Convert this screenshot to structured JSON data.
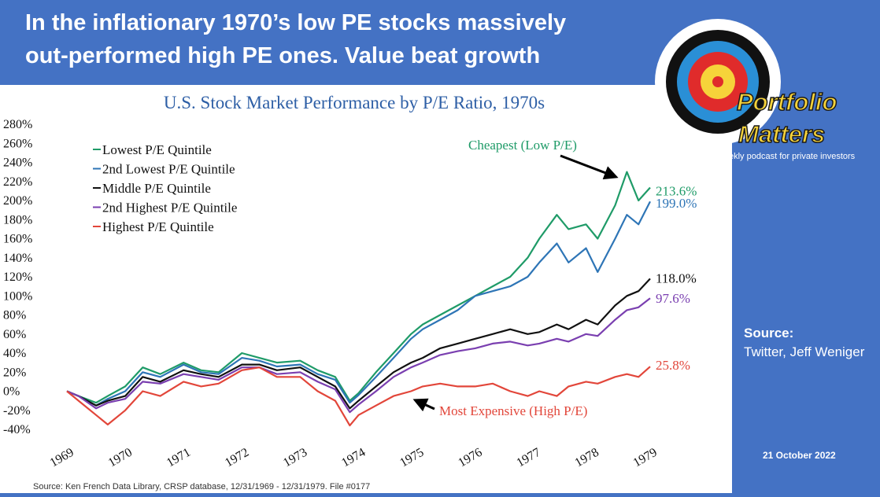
{
  "header": {
    "line1": "In the inflationary 1970’s low PE stocks massively",
    "line2": "out-performed high PE ones. Value beat growth"
  },
  "logo": {
    "name_line1": "Portfolio",
    "name_line2": "Matters",
    "tagline": "ekly podcast for private investors"
  },
  "side": {
    "source_heading": "Source:",
    "source_text": "Twitter, Jeff Weniger",
    "date": "21 October 2022"
  },
  "colors": {
    "banner": "#4472c4",
    "lowest": "#1f9b68",
    "second_lowest": "#2e75b6",
    "middle": "#111111",
    "second_highest": "#7a3fb0",
    "highest": "#e2463a",
    "title": "#2e5fa6"
  },
  "chart_data": {
    "type": "line",
    "title": "U.S. Stock Market Performance by P/E Ratio, 1970s",
    "source": "Source: Ken French Data Library, CRSP database, 12/31/1969 - 12/31/1979. File #0177",
    "ylim": [
      -40,
      280
    ],
    "xlim": [
      1969,
      1979
    ],
    "yticks": [
      "-40%",
      "-20%",
      "0%",
      "20%",
      "40%",
      "60%",
      "80%",
      "100%",
      "120%",
      "140%",
      "160%",
      "180%",
      "200%",
      "220%",
      "240%",
      "260%",
      "280%"
    ],
    "ytick_values": [
      -40,
      -20,
      0,
      20,
      40,
      60,
      80,
      100,
      120,
      140,
      160,
      180,
      200,
      220,
      240,
      260,
      280
    ],
    "xticks": [
      "1969",
      "1970",
      "1971",
      "1972",
      "1973",
      "1974",
      "1975",
      "1976",
      "1977",
      "1978",
      "1979"
    ],
    "xtick_values": [
      1969,
      1970,
      1971,
      1972,
      1973,
      1974,
      1975,
      1976,
      1977,
      1978,
      1979
    ],
    "grid": false,
    "legend_position": "top-left",
    "series": [
      {
        "name": "Lowest P/E Quintile",
        "color": "#1f9b68",
        "end_label": "213.6%",
        "points": [
          [
            1969,
            0
          ],
          [
            1969.2,
            -5
          ],
          [
            1969.5,
            -12
          ],
          [
            1969.7,
            -5
          ],
          [
            1970,
            5
          ],
          [
            1970.3,
            25
          ],
          [
            1970.6,
            18
          ],
          [
            1971,
            30
          ],
          [
            1971.3,
            22
          ],
          [
            1971.6,
            20
          ],
          [
            1972,
            40
          ],
          [
            1972.3,
            35
          ],
          [
            1972.6,
            30
          ],
          [
            1973,
            32
          ],
          [
            1973.3,
            22
          ],
          [
            1973.6,
            15
          ],
          [
            1973.85,
            -10
          ],
          [
            1974,
            -2
          ],
          [
            1974.3,
            20
          ],
          [
            1974.6,
            40
          ],
          [
            1974.9,
            60
          ],
          [
            1975.1,
            70
          ],
          [
            1975.4,
            80
          ],
          [
            1975.7,
            90
          ],
          [
            1976,
            100
          ],
          [
            1976.3,
            110
          ],
          [
            1976.6,
            120
          ],
          [
            1976.9,
            140
          ],
          [
            1977.1,
            160
          ],
          [
            1977.4,
            185
          ],
          [
            1977.6,
            170
          ],
          [
            1977.9,
            175
          ],
          [
            1978.1,
            160
          ],
          [
            1978.4,
            195
          ],
          [
            1978.6,
            230
          ],
          [
            1978.8,
            200
          ],
          [
            1979,
            213.6
          ]
        ]
      },
      {
        "name": "2nd Lowest P/E Quintile",
        "color": "#2e75b6",
        "end_label": "199.0%",
        "points": [
          [
            1969,
            0
          ],
          [
            1969.2,
            -5
          ],
          [
            1969.5,
            -15
          ],
          [
            1969.7,
            -8
          ],
          [
            1970,
            0
          ],
          [
            1970.3,
            20
          ],
          [
            1970.6,
            15
          ],
          [
            1971,
            28
          ],
          [
            1971.3,
            20
          ],
          [
            1971.6,
            18
          ],
          [
            1972,
            35
          ],
          [
            1972.3,
            32
          ],
          [
            1972.6,
            26
          ],
          [
            1973,
            28
          ],
          [
            1973.3,
            18
          ],
          [
            1973.6,
            12
          ],
          [
            1973.85,
            -12
          ],
          [
            1974,
            -4
          ],
          [
            1974.3,
            15
          ],
          [
            1974.6,
            35
          ],
          [
            1974.9,
            55
          ],
          [
            1975.1,
            65
          ],
          [
            1975.4,
            75
          ],
          [
            1975.7,
            85
          ],
          [
            1976,
            100
          ],
          [
            1976.3,
            105
          ],
          [
            1976.6,
            110
          ],
          [
            1976.9,
            120
          ],
          [
            1977.1,
            135
          ],
          [
            1977.4,
            155
          ],
          [
            1977.6,
            135
          ],
          [
            1977.9,
            150
          ],
          [
            1978.1,
            125
          ],
          [
            1978.4,
            160
          ],
          [
            1978.6,
            185
          ],
          [
            1978.8,
            175
          ],
          [
            1979,
            199
          ]
        ]
      },
      {
        "name": "Middle P/E Quintile",
        "color": "#111111",
        "end_label": "118.0%",
        "points": [
          [
            1969,
            0
          ],
          [
            1969.2,
            -5
          ],
          [
            1969.5,
            -15
          ],
          [
            1969.7,
            -10
          ],
          [
            1970,
            -5
          ],
          [
            1970.3,
            15
          ],
          [
            1970.6,
            10
          ],
          [
            1971,
            22
          ],
          [
            1971.3,
            18
          ],
          [
            1971.6,
            15
          ],
          [
            1972,
            28
          ],
          [
            1972.3,
            28
          ],
          [
            1972.6,
            22
          ],
          [
            1973,
            25
          ],
          [
            1973.3,
            15
          ],
          [
            1973.6,
            5
          ],
          [
            1973.85,
            -18
          ],
          [
            1974,
            -10
          ],
          [
            1974.3,
            5
          ],
          [
            1974.6,
            20
          ],
          [
            1974.9,
            30
          ],
          [
            1975.1,
            35
          ],
          [
            1975.4,
            45
          ],
          [
            1975.7,
            50
          ],
          [
            1976,
            55
          ],
          [
            1976.3,
            60
          ],
          [
            1976.6,
            65
          ],
          [
            1976.9,
            60
          ],
          [
            1977.1,
            62
          ],
          [
            1977.4,
            70
          ],
          [
            1977.6,
            65
          ],
          [
            1977.9,
            75
          ],
          [
            1978.1,
            70
          ],
          [
            1978.4,
            90
          ],
          [
            1978.6,
            100
          ],
          [
            1978.8,
            105
          ],
          [
            1979,
            118
          ]
        ]
      },
      {
        "name": "2nd Highest P/E Quintile",
        "color": "#7a3fb0",
        "end_label": "97.6%",
        "points": [
          [
            1969,
            0
          ],
          [
            1969.2,
            -5
          ],
          [
            1969.5,
            -18
          ],
          [
            1969.7,
            -12
          ],
          [
            1970,
            -8
          ],
          [
            1970.3,
            10
          ],
          [
            1970.6,
            8
          ],
          [
            1971,
            18
          ],
          [
            1971.3,
            15
          ],
          [
            1971.6,
            12
          ],
          [
            1972,
            25
          ],
          [
            1972.3,
            25
          ],
          [
            1972.6,
            18
          ],
          [
            1973,
            20
          ],
          [
            1973.3,
            10
          ],
          [
            1973.6,
            2
          ],
          [
            1973.85,
            -22
          ],
          [
            1974,
            -14
          ],
          [
            1974.3,
            0
          ],
          [
            1974.6,
            15
          ],
          [
            1974.9,
            25
          ],
          [
            1975.1,
            30
          ],
          [
            1975.4,
            38
          ],
          [
            1975.7,
            42
          ],
          [
            1976,
            45
          ],
          [
            1976.3,
            50
          ],
          [
            1976.6,
            52
          ],
          [
            1976.9,
            48
          ],
          [
            1977.1,
            50
          ],
          [
            1977.4,
            55
          ],
          [
            1977.6,
            52
          ],
          [
            1977.9,
            60
          ],
          [
            1978.1,
            58
          ],
          [
            1978.4,
            75
          ],
          [
            1978.6,
            85
          ],
          [
            1978.8,
            88
          ],
          [
            1979,
            97.6
          ]
        ]
      },
      {
        "name": "Highest P/E Quintile",
        "color": "#e2463a",
        "end_label": "25.8%",
        "points": [
          [
            1969,
            0
          ],
          [
            1969.2,
            -10
          ],
          [
            1969.5,
            -25
          ],
          [
            1969.7,
            -35
          ],
          [
            1970,
            -20
          ],
          [
            1970.3,
            0
          ],
          [
            1970.6,
            -5
          ],
          [
            1971,
            10
          ],
          [
            1971.3,
            5
          ],
          [
            1971.6,
            8
          ],
          [
            1972,
            22
          ],
          [
            1972.3,
            25
          ],
          [
            1972.6,
            15
          ],
          [
            1973,
            15
          ],
          [
            1973.3,
            0
          ],
          [
            1973.6,
            -10
          ],
          [
            1973.85,
            -36
          ],
          [
            1974,
            -25
          ],
          [
            1974.3,
            -15
          ],
          [
            1974.6,
            -5
          ],
          [
            1974.9,
            0
          ],
          [
            1975.1,
            5
          ],
          [
            1975.4,
            8
          ],
          [
            1975.7,
            5
          ],
          [
            1976,
            5
          ],
          [
            1976.3,
            8
          ],
          [
            1976.6,
            0
          ],
          [
            1976.9,
            -5
          ],
          [
            1977.1,
            0
          ],
          [
            1977.4,
            -5
          ],
          [
            1977.6,
            5
          ],
          [
            1977.9,
            10
          ],
          [
            1978.1,
            8
          ],
          [
            1978.4,
            15
          ],
          [
            1978.6,
            18
          ],
          [
            1978.8,
            15
          ],
          [
            1979,
            25.8
          ]
        ]
      }
    ],
    "annotations": [
      {
        "text": "Cheapest (Low P/E)",
        "color": "#1f9b68"
      },
      {
        "text": "Most Expensive (High P/E)",
        "color": "#e2463a"
      }
    ]
  }
}
